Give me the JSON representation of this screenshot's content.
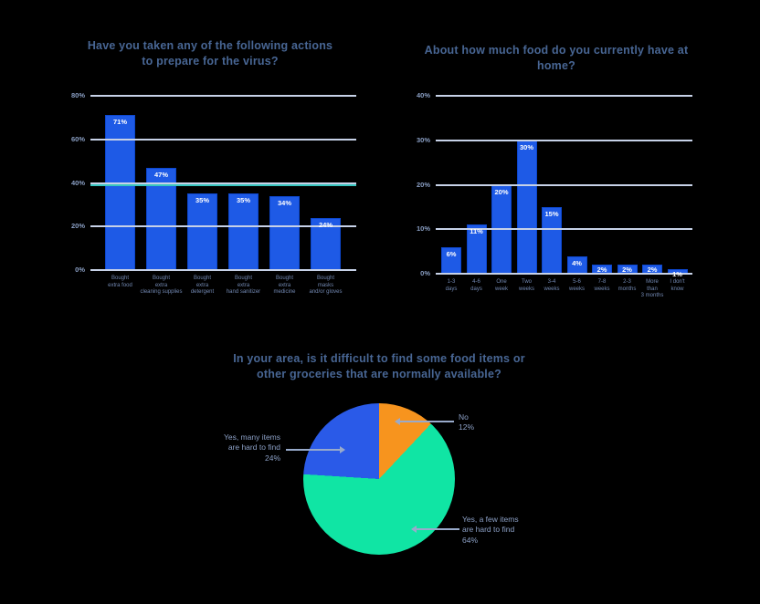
{
  "page": {
    "background": "#000000"
  },
  "colors": {
    "bar_fill": "#1E5AE6",
    "bar_border": "#0D47CE",
    "gridline": "#C7D2E8",
    "accent_line": "#38C6BF",
    "tick_text": "#8A9FC4",
    "axis_label_text": "#7288B2",
    "title_text": "#486694",
    "value_label_text": "#FFFFFF",
    "pie_label_text": "#8CA0C6",
    "leader_line": "#98AACB",
    "pie_no": "#F7941E",
    "pie_yes_few": "#10E5A4",
    "pie_yes_many": "#2A5AE8"
  },
  "chart_data": [
    {
      "type": "bar",
      "title": "Have you taken any of the following actions\nto prepare for the virus?",
      "ylabel": "",
      "xlabel": "",
      "ylim": [
        0,
        80
      ],
      "grid": true,
      "yticks": [
        {
          "label": "0%",
          "value": 0
        },
        {
          "label": "20%",
          "value": 20
        },
        {
          "label": "40%",
          "value": 40
        },
        {
          "label": "60%",
          "value": 60
        },
        {
          "label": "80%",
          "value": 80
        }
      ],
      "accent_line_value": 40,
      "bars": [
        {
          "category_lines": [
            "Bought",
            "extra food"
          ],
          "value": 71,
          "label": "71%"
        },
        {
          "category_lines": [
            "Bought",
            "extra",
            "cleaning supplies"
          ],
          "value": 47,
          "label": "47%"
        },
        {
          "category_lines": [
            "Bought",
            "extra",
            "detergent"
          ],
          "value": 35,
          "label": "35%"
        },
        {
          "category_lines": [
            "Bought",
            "extra",
            "hand sanitizer"
          ],
          "value": 35,
          "label": "35%"
        },
        {
          "category_lines": [
            "Bought",
            "extra",
            "medicine"
          ],
          "value": 34,
          "label": "34%"
        },
        {
          "category_lines": [
            "Bought",
            "masks",
            "and/or gloves"
          ],
          "value": 24,
          "label": "24%"
        }
      ]
    },
    {
      "type": "bar",
      "title": "About how much food do you currently have at home?",
      "ylabel": "",
      "xlabel": "",
      "ylim": [
        0,
        40
      ],
      "grid": true,
      "yticks": [
        {
          "label": "0%",
          "value": 0
        },
        {
          "label": "10%",
          "value": 10
        },
        {
          "label": "20%",
          "value": 20
        },
        {
          "label": "30%",
          "value": 30
        },
        {
          "label": "40%",
          "value": 40
        }
      ],
      "bars": [
        {
          "category_lines": [
            "1-3",
            "days"
          ],
          "value": 6,
          "label": "6%"
        },
        {
          "category_lines": [
            "4-6",
            "days"
          ],
          "value": 11,
          "label": "11%"
        },
        {
          "category_lines": [
            "One",
            "week"
          ],
          "value": 20,
          "label": "20%"
        },
        {
          "category_lines": [
            "Two",
            "weeks"
          ],
          "value": 30,
          "label": "30%"
        },
        {
          "category_lines": [
            "3-4",
            "weeks"
          ],
          "value": 15,
          "label": "15%"
        },
        {
          "category_lines": [
            "5-6",
            "weeks"
          ],
          "value": 4,
          "label": "4%"
        },
        {
          "category_lines": [
            "7-8",
            "weeks"
          ],
          "value": 2,
          "label": "2%"
        },
        {
          "category_lines": [
            "2-3",
            "months"
          ],
          "value": 2,
          "label": "2%"
        },
        {
          "category_lines": [
            "More",
            "than",
            "3 months"
          ],
          "value": 2,
          "label": "2%"
        },
        {
          "category_lines": [
            "I don't",
            "know"
          ],
          "value": 1,
          "label": "1%"
        }
      ]
    },
    {
      "type": "pie",
      "title": "In your area, is it difficult to find some food items or\nother groceries that are normally available?",
      "legend_position": "none",
      "slices": [
        {
          "name": "no",
          "label_lines": [
            "No",
            "12%"
          ],
          "value": 12,
          "color_key": "pie_no"
        },
        {
          "name": "yes_few",
          "label_lines": [
            "Yes, a few items",
            "are hard to find",
            "64%"
          ],
          "value": 64,
          "color_key": "pie_yes_few"
        },
        {
          "name": "yes_many",
          "label_lines": [
            "Yes, many items",
            "are hard to find",
            "24%"
          ],
          "value": 24,
          "color_key": "pie_yes_many"
        }
      ]
    }
  ]
}
